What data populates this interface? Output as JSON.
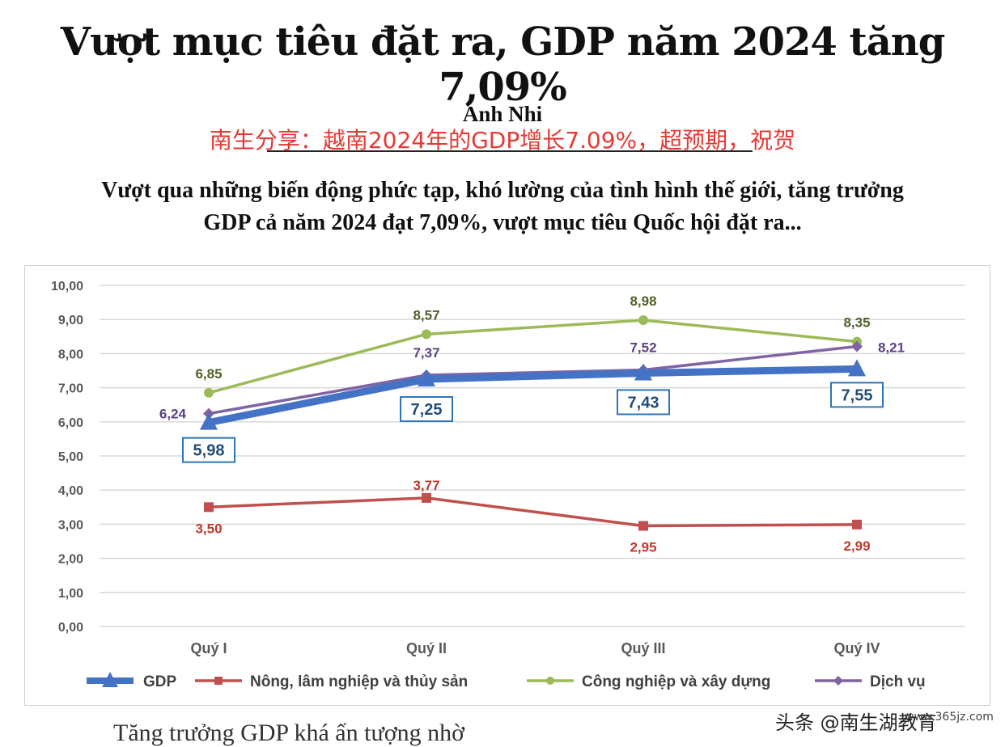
{
  "article": {
    "headline": "Vượt mục tiêu đặt ra, GDP năm 2024 tăng 7,09%",
    "author": "Anh Nhi",
    "cn_note": "南生分享：越南2024年的GDP增长7.09%，超预期，祝贺",
    "summary_line1": "Vượt qua những biến động phức tạp, khó lường của tình hình thế giới, tăng trưởng",
    "summary_line2": "GDP cả năm 2024 đạt 7,09%, vượt mục tiêu Quốc hội đặt ra...",
    "bottom_partial": "Tăng trưởng GDP khá ấn tượng nhờ",
    "watermark": "头条 @南生湖教育",
    "site_url": "www.365jz.com"
  },
  "chart_data": {
    "type": "line",
    "categories": [
      "Quý I",
      "Quý II",
      "Quý III",
      "Quý IV"
    ],
    "y_ticks": [
      "0,00",
      "1,00",
      "2,00",
      "3,00",
      "4,00",
      "5,00",
      "6,00",
      "7,00",
      "8,00",
      "9,00",
      "10,00"
    ],
    "ylim": [
      0,
      10
    ],
    "grid": true,
    "legend_position": "bottom",
    "series": [
      {
        "name": "GDP",
        "values": [
          5.98,
          7.25,
          7.43,
          7.55
        ],
        "labels": [
          "5,98",
          "7,25",
          "7,43",
          "7,55"
        ],
        "color": "#4472c4",
        "marker": "triangle"
      },
      {
        "name": "Nông, lâm nghiệp và thủy sản",
        "values": [
          3.5,
          3.77,
          2.95,
          2.99
        ],
        "labels": [
          "3,50",
          "3,77",
          "2,95",
          "2,99"
        ],
        "color": "#c0504d",
        "marker": "square"
      },
      {
        "name": "Công nghiệp và xây dựng",
        "values": [
          6.85,
          8.57,
          8.98,
          8.35
        ],
        "labels": [
          "6,85",
          "8,57",
          "8,98",
          "8,35"
        ],
        "color": "#9bbb59",
        "marker": "circle"
      },
      {
        "name": "Dịch vụ",
        "values": [
          6.24,
          7.37,
          7.52,
          8.21
        ],
        "labels": [
          "6,24",
          "7,37",
          "7,52",
          "8,21"
        ],
        "color": "#8064a2",
        "marker": "diamond"
      }
    ]
  },
  "colors": {
    "label_gdp_box": "#2e75b6",
    "label_gdp_text": "#1f4e79",
    "label_agri": "#c0392b",
    "label_industry": "#4f6228",
    "label_services": "#5b4283",
    "note_red": "#e53935"
  }
}
